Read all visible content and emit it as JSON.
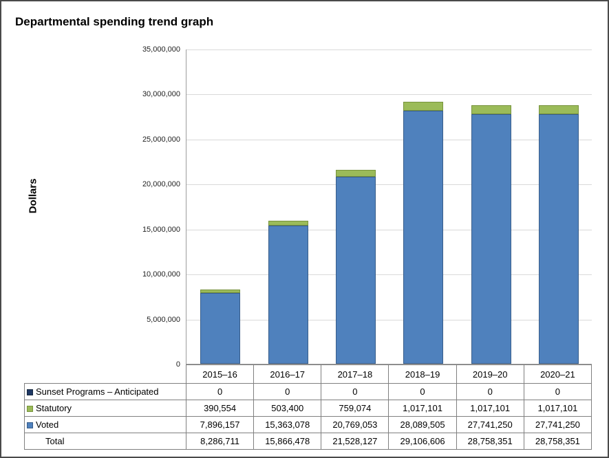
{
  "chart_data": {
    "type": "bar",
    "stacked": true,
    "title": "Departmental spending trend graph",
    "ylabel": "Dollars",
    "xlabel": "",
    "ylim": [
      0,
      35000000
    ],
    "ytick_interval": 5000000,
    "yticks": [
      "35,000,000",
      "30,000,000",
      "25,000,000",
      "20,000,000",
      "15,000,000",
      "10,000,000",
      "5,000,000",
      "0"
    ],
    "grid": true,
    "legend_position": "table-left",
    "categories": [
      "2015–16",
      "2016–17",
      "2017–18",
      "2018–19",
      "2019–20",
      "2020–21"
    ],
    "series": [
      {
        "name": "Sunset Programs – Anticipated",
        "color": "#1f3864",
        "border_color": "#16283f",
        "values": [
          0,
          0,
          0,
          0,
          0,
          0
        ]
      },
      {
        "name": "Statutory",
        "color": "#9bbb59",
        "border_color": "#77933c",
        "values": [
          390554,
          503400,
          759074,
          1017101,
          1017101,
          1017101
        ]
      },
      {
        "name": "Voted",
        "color": "#4f81bd",
        "border_color": "#385d8a",
        "values": [
          7896157,
          15363078,
          20769053,
          28089505,
          27741250,
          27741250
        ]
      }
    ],
    "totals": {
      "label": "Total",
      "values": [
        8286711,
        15866478,
        21528127,
        29106606,
        28758351,
        28758351
      ]
    }
  }
}
